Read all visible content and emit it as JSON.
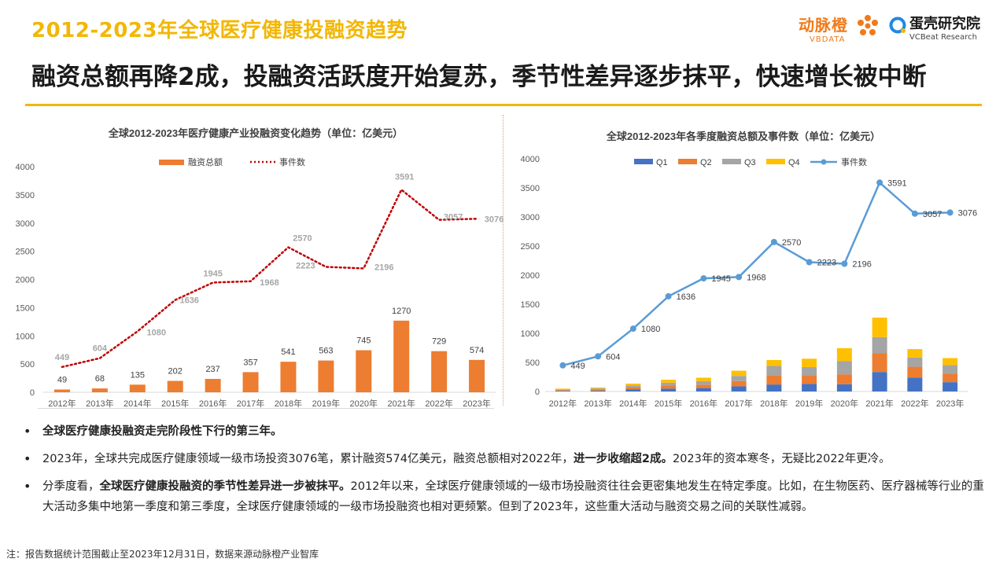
{
  "header": {
    "title": "2012-2023年全球医疗健康投融资趋势",
    "headline": "融资总额再降2成，投融资活跃度开始复苏，季节性差异逐步抹平，快速增长被中断"
  },
  "logos": {
    "vbdata_cn": "动脉橙",
    "vbdata_en": "VBDATA",
    "vcbeat_cn": "蛋壳研究院",
    "vcbeat_en": "VCBeat Research"
  },
  "colors": {
    "accent": "#f2b705",
    "bar": "#ed7d31",
    "line_dotted": "#c00000",
    "q1": "#4472c4",
    "q2": "#ed7d31",
    "q3": "#a5a5a5",
    "q4": "#ffc000",
    "events": "#5b9bd5"
  },
  "chart_data": [
    {
      "type": "bar",
      "title": "全球2012-2023年医疗健康产业投融资变化趋势（单位：亿美元）",
      "categories": [
        "2012年",
        "2013年",
        "2014年",
        "2015年",
        "2016年",
        "2017年",
        "2018年",
        "2019年",
        "2020年",
        "2021年",
        "2022年",
        "2023年"
      ],
      "ylim": [
        0,
        4000
      ],
      "yticks": [
        "0",
        "500",
        "1000",
        "1500",
        "2000",
        "2500",
        "3000",
        "3500",
        "4000"
      ],
      "legend": [
        "融资总额",
        "事件数"
      ],
      "series": [
        {
          "name": "融资总额",
          "type": "bar",
          "values": [
            49,
            68,
            135,
            202,
            237,
            357,
            541,
            563,
            745,
            1270,
            729,
            574
          ]
        },
        {
          "name": "事件数",
          "type": "line",
          "values": [
            449,
            604,
            1080,
            1636,
            1945,
            1968,
            2570,
            2223,
            2196,
            3591,
            3057,
            3076
          ]
        }
      ]
    },
    {
      "type": "bar",
      "stacked": true,
      "title": "全球2012-2023年各季度融资总额及事件数（单位：亿美元）",
      "categories": [
        "2012年",
        "2013年",
        "2014年",
        "2015年",
        "2016年",
        "2017年",
        "2018年",
        "2019年",
        "2020年",
        "2021年",
        "2022年",
        "2023年"
      ],
      "ylim": [
        0,
        4000
      ],
      "yticks": [
        "0",
        "500",
        "1000",
        "1500",
        "2000",
        "2500",
        "3000",
        "3500",
        "4000"
      ],
      "legend": [
        "Q1",
        "Q2",
        "Q3",
        "Q4",
        "事件数"
      ],
      "series": [
        {
          "name": "Q1",
          "values": [
            12,
            17,
            34,
            50,
            59,
            89,
            120,
            130,
            125,
            335,
            240,
            160
          ]
        },
        {
          "name": "Q2",
          "values": [
            12,
            17,
            34,
            51,
            59,
            90,
            160,
            140,
            170,
            320,
            185,
            145
          ]
        },
        {
          "name": "Q3",
          "values": [
            12,
            17,
            34,
            50,
            60,
            89,
            160,
            150,
            230,
            280,
            160,
            150
          ]
        },
        {
          "name": "Q4",
          "values": [
            13,
            17,
            33,
            51,
            59,
            89,
            101,
            143,
            220,
            335,
            144,
            119
          ]
        },
        {
          "name": "事件数",
          "type": "line",
          "values": [
            449,
            604,
            1080,
            1636,
            1945,
            1968,
            2570,
            2223,
            2196,
            3591,
            3057,
            3076
          ]
        }
      ]
    }
  ],
  "bullets": [
    {
      "parts": [
        {
          "text": "全球医疗健康投融资走完阶段性下行的第三年。",
          "bold": true
        }
      ]
    },
    {
      "parts": [
        {
          "text": "2023年，全球共完成医疗健康领域一级市场投资3076笔，累计融资574亿美元，融资总额相对2022年，",
          "bold": false
        },
        {
          "text": "进一步收缩超2成。",
          "bold": true
        },
        {
          "text": "2023年的资本寒冬，无疑比2022年更冷。",
          "bold": false
        }
      ]
    },
    {
      "parts": [
        {
          "text": "分季度看，",
          "bold": false
        },
        {
          "text": "全球医疗健康投融资的季节性差异进一步被抹平。",
          "bold": true
        },
        {
          "text": "2012年以来，全球医疗健康领域的一级市场投融资往往会更密集地发生在特定季度。比如，在生物医药、医疗器械等行业的重大活动多集中地第一季度和第三季度，全球医疗健康领域的一级市场投融资也相对更频繁。但到了2023年，这些重大活动与融资交易之间的关联性减弱。",
          "bold": false
        }
      ]
    }
  ],
  "footnote": "注：报告数据统计范围截止至2023年12月31日，数据来源动脉橙产业智库"
}
